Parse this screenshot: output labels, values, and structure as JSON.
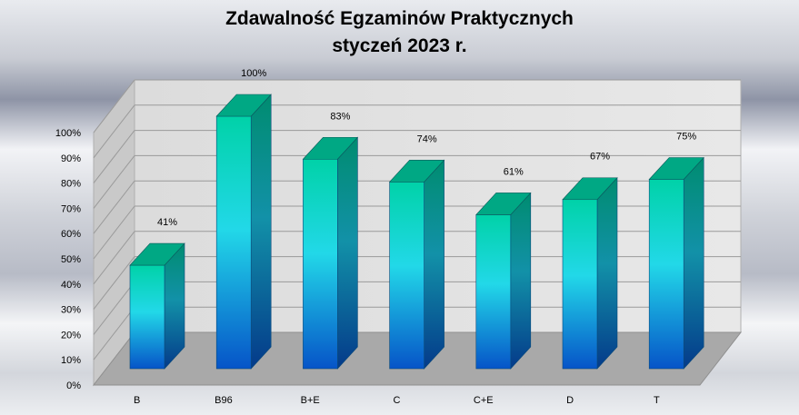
{
  "chart_data": {
    "type": "bar",
    "title": "Zdawalność Egzaminów Praktycznych",
    "subtitle": "styczeń 2023 r.",
    "xlabel": "",
    "ylabel": "",
    "categories": [
      "B",
      "B96",
      "B+E",
      "C",
      "C+E",
      "D",
      "T"
    ],
    "series": [
      {
        "values": [
          41,
          100,
          83,
          74,
          61,
          67,
          75
        ]
      }
    ],
    "data_labels": [
      "41%",
      "100%",
      "83%",
      "74%",
      "61%",
      "67%",
      "75%"
    ],
    "ylim": [
      0,
      100
    ],
    "yticks": [
      "0%",
      "10%",
      "20%",
      "30%",
      "40%",
      "50%",
      "60%",
      "70%",
      "80%",
      "90%",
      "100%"
    ],
    "grid": true,
    "legend": "none",
    "style": "3d-column",
    "colors": {
      "bar_top": "#00c9a0",
      "bar_mid": "#22d4e6",
      "bar_bottom": "#0a63d0",
      "wall": "#e3e3e3",
      "floor": "#a8a8a8"
    }
  }
}
